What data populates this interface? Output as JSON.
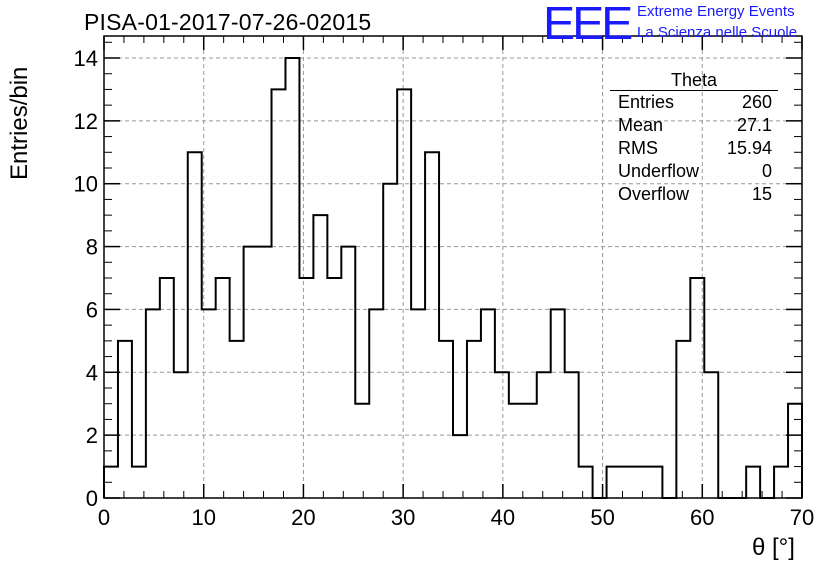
{
  "chart_data": {
    "type": "bar",
    "title": "PISA-01-2017-07-26-02015",
    "xlabel": "θ [°]",
    "ylabel": "Entries/bin",
    "xlim": [
      0,
      70
    ],
    "ylim": [
      0,
      14.7
    ],
    "grid": true,
    "bin_width": 1.4,
    "x_ticks": [
      "0",
      "10",
      "20",
      "30",
      "40",
      "50",
      "60",
      "70"
    ],
    "y_ticks": [
      "0",
      "2",
      "4",
      "6",
      "8",
      "10",
      "12",
      "14"
    ],
    "values": [
      1,
      5,
      1,
      6,
      7,
      4,
      11,
      6,
      7,
      5,
      8,
      8,
      13,
      14,
      7,
      9,
      7,
      8,
      3,
      6,
      10,
      13,
      6,
      11,
      5,
      2,
      5,
      6,
      4,
      3,
      3,
      4,
      6,
      4,
      1,
      0,
      1,
      1,
      1,
      1,
      0,
      5,
      7,
      4,
      0,
      0,
      1,
      0,
      1,
      3
    ],
    "stats_box": {
      "name": "Theta",
      "entries_label": "Entries",
      "entries": "260",
      "mean_label": "Mean",
      "mean": "27.1",
      "rms_label": "RMS",
      "rms": "15.94",
      "underflow_label": "Underflow",
      "underflow": "0",
      "overflow_label": "Overflow",
      "overflow": "15"
    }
  },
  "logo": {
    "mark": "EEE",
    "line1": "Extreme Energy Events",
    "line2": "La Scienza nelle Scuole",
    "color": "#1a1aff"
  }
}
